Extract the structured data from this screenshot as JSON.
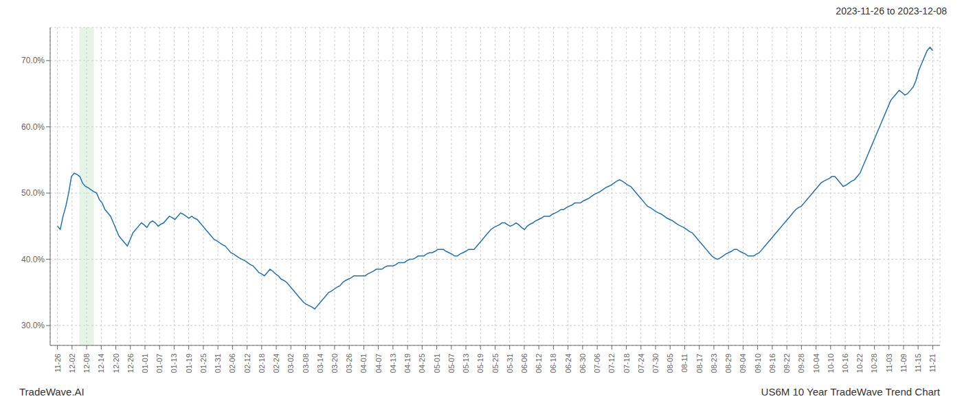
{
  "chart_data": {
    "type": "line",
    "title": "2023-11-26 to 2023-12-08",
    "annotations": [
      "TradeWave.AI",
      "US6M 10 Year TradeWave Trend Chart"
    ],
    "color": "#2070b4",
    "grid": true,
    "ylim": [
      27.0,
      75.0
    ],
    "yticks": [
      {
        "value": 30.0,
        "label": "30.0%"
      },
      {
        "value": 40.0,
        "label": "40.0%"
      },
      {
        "value": 50.0,
        "label": "50.0%"
      },
      {
        "value": 60.0,
        "label": "60.0%"
      },
      {
        "value": 70.0,
        "label": "70.0%"
      }
    ],
    "xlim": [
      -0.5,
      60.5
    ],
    "xticks": [
      {
        "value": 0,
        "label": "11-26"
      },
      {
        "value": 1,
        "label": "12-02"
      },
      {
        "value": 2,
        "label": "12-08"
      },
      {
        "value": 3,
        "label": "12-14"
      },
      {
        "value": 4,
        "label": "12-20"
      },
      {
        "value": 5,
        "label": "12-26"
      },
      {
        "value": 6,
        "label": "01-01"
      },
      {
        "value": 7,
        "label": "01-07"
      },
      {
        "value": 8,
        "label": "01-13"
      },
      {
        "value": 9,
        "label": "01-19"
      },
      {
        "value": 10,
        "label": "01-25"
      },
      {
        "value": 11,
        "label": "01-31"
      },
      {
        "value": 12,
        "label": "02-06"
      },
      {
        "value": 13,
        "label": "02-12"
      },
      {
        "value": 14,
        "label": "02-18"
      },
      {
        "value": 15,
        "label": "02-24"
      },
      {
        "value": 16,
        "label": "03-02"
      },
      {
        "value": 17,
        "label": "03-08"
      },
      {
        "value": 18,
        "label": "03-14"
      },
      {
        "value": 19,
        "label": "03-20"
      },
      {
        "value": 20,
        "label": "03-26"
      },
      {
        "value": 21,
        "label": "04-01"
      },
      {
        "value": 22,
        "label": "04-07"
      },
      {
        "value": 23,
        "label": "04-13"
      },
      {
        "value": 24,
        "label": "04-19"
      },
      {
        "value": 25,
        "label": "04-25"
      },
      {
        "value": 26,
        "label": "05-01"
      },
      {
        "value": 27,
        "label": "05-07"
      },
      {
        "value": 28,
        "label": "05-13"
      },
      {
        "value": 29,
        "label": "05-19"
      },
      {
        "value": 30,
        "label": "05-25"
      },
      {
        "value": 31,
        "label": "05-31"
      },
      {
        "value": 32,
        "label": "06-06"
      },
      {
        "value": 33,
        "label": "06-12"
      },
      {
        "value": 34,
        "label": "06-18"
      },
      {
        "value": 35,
        "label": "06-24"
      },
      {
        "value": 36,
        "label": "06-30"
      },
      {
        "value": 37,
        "label": "07-06"
      },
      {
        "value": 38,
        "label": "07-12"
      },
      {
        "value": 39,
        "label": "07-18"
      },
      {
        "value": 40,
        "label": "07-24"
      },
      {
        "value": 41,
        "label": "07-30"
      },
      {
        "value": 42,
        "label": "08-05"
      },
      {
        "value": 43,
        "label": "08-11"
      },
      {
        "value": 44,
        "label": "08-17"
      },
      {
        "value": 45,
        "label": "08-23"
      },
      {
        "value": 46,
        "label": "08-29"
      },
      {
        "value": 47,
        "label": "09-04"
      },
      {
        "value": 48,
        "label": "09-10"
      },
      {
        "value": 49,
        "label": "09-16"
      },
      {
        "value": 50,
        "label": "09-22"
      },
      {
        "value": 51,
        "label": "09-28"
      },
      {
        "value": 52,
        "label": "10-04"
      },
      {
        "value": 53,
        "label": "10-10"
      },
      {
        "value": 54,
        "label": "10-16"
      },
      {
        "value": 55,
        "label": "10-22"
      },
      {
        "value": 56,
        "label": "10-28"
      },
      {
        "value": 57,
        "label": "11-03"
      },
      {
        "value": 58,
        "label": "11-09"
      },
      {
        "value": 59,
        "label": "11-15"
      },
      {
        "value": 60,
        "label": "11-21"
      }
    ],
    "highlight": {
      "x": [
        1.5,
        2.5
      ],
      "color": "#c8e6c9"
    },
    "values": [
      45.0,
      44.5,
      46.5,
      48.0,
      50.0,
      52.5,
      53.0,
      52.8,
      52.5,
      51.5,
      51.0,
      50.8,
      50.5,
      50.2,
      50.0,
      49.0,
      48.5,
      47.5,
      47.0,
      46.5,
      45.5,
      44.5,
      43.5,
      43.0,
      42.5,
      42.0,
      43.0,
      44.0,
      44.5,
      45.0,
      45.5,
      45.2,
      44.8,
      45.5,
      45.8,
      45.5,
      45.0,
      45.3,
      45.5,
      46.0,
      46.5,
      46.3,
      46.0,
      46.5,
      47.0,
      46.8,
      46.5,
      46.2,
      46.5,
      46.2,
      46.0,
      45.5,
      45.0,
      44.5,
      44.0,
      43.5,
      43.0,
      42.8,
      42.5,
      42.2,
      42.0,
      41.5,
      41.0,
      40.8,
      40.5,
      40.2,
      40.0,
      39.8,
      39.5,
      39.2,
      39.0,
      38.5,
      38.0,
      37.8,
      37.5,
      38.0,
      38.5,
      38.2,
      37.8,
      37.5,
      37.0,
      36.8,
      36.5,
      36.0,
      35.5,
      35.0,
      34.5,
      34.0,
      33.5,
      33.2,
      33.0,
      32.8,
      32.5,
      33.0,
      33.5,
      34.0,
      34.5,
      35.0,
      35.2,
      35.5,
      35.8,
      36.0,
      36.5,
      36.8,
      37.0,
      37.2,
      37.5,
      37.5,
      37.5,
      37.5,
      37.5,
      37.8,
      38.0,
      38.2,
      38.5,
      38.5,
      38.5,
      38.8,
      39.0,
      39.0,
      39.0,
      39.2,
      39.5,
      39.5,
      39.5,
      39.8,
      40.0,
      40.0,
      40.2,
      40.5,
      40.5,
      40.5,
      40.8,
      41.0,
      41.0,
      41.2,
      41.5,
      41.5,
      41.5,
      41.2,
      41.0,
      40.8,
      40.5,
      40.5,
      40.8,
      41.0,
      41.2,
      41.5,
      41.5,
      41.5,
      42.0,
      42.5,
      43.0,
      43.5,
      44.0,
      44.5,
      44.8,
      45.0,
      45.2,
      45.5,
      45.5,
      45.2,
      45.0,
      45.2,
      45.5,
      45.2,
      44.8,
      44.5,
      45.0,
      45.3,
      45.5,
      45.8,
      46.0,
      46.2,
      46.5,
      46.5,
      46.5,
      46.8,
      47.0,
      47.2,
      47.5,
      47.5,
      47.8,
      48.0,
      48.2,
      48.5,
      48.5,
      48.5,
      48.8,
      49.0,
      49.2,
      49.5,
      49.8,
      50.0,
      50.2,
      50.5,
      50.8,
      51.0,
      51.2,
      51.5,
      51.8,
      52.0,
      51.8,
      51.5,
      51.2,
      51.0,
      50.5,
      50.0,
      49.5,
      49.0,
      48.5,
      48.0,
      47.8,
      47.5,
      47.2,
      47.0,
      46.8,
      46.5,
      46.2,
      46.0,
      45.8,
      45.5,
      45.2,
      45.0,
      44.8,
      44.5,
      44.2,
      44.0,
      43.5,
      43.0,
      42.5,
      42.0,
      41.5,
      41.0,
      40.5,
      40.2,
      40.0,
      40.2,
      40.5,
      40.8,
      41.0,
      41.2,
      41.5,
      41.5,
      41.2,
      41.0,
      40.8,
      40.5,
      40.5,
      40.5,
      40.8,
      41.0,
      41.5,
      42.0,
      42.5,
      43.0,
      43.5,
      44.0,
      44.5,
      45.0,
      45.5,
      46.0,
      46.5,
      47.0,
      47.5,
      47.8,
      48.0,
      48.5,
      49.0,
      49.5,
      50.0,
      50.5,
      51.0,
      51.5,
      51.8,
      52.0,
      52.2,
      52.5,
      52.5,
      52.0,
      51.5,
      51.0,
      51.2,
      51.5,
      51.8,
      52.0,
      52.5,
      53.0,
      54.0,
      55.0,
      56.0,
      57.0,
      58.0,
      59.0,
      60.0,
      61.0,
      62.0,
      63.0,
      64.0,
      64.5,
      65.0,
      65.5,
      65.2,
      64.8,
      65.0,
      65.5,
      66.0,
      67.0,
      68.5,
      69.5,
      70.5,
      71.5,
      72.0,
      71.5
    ]
  }
}
